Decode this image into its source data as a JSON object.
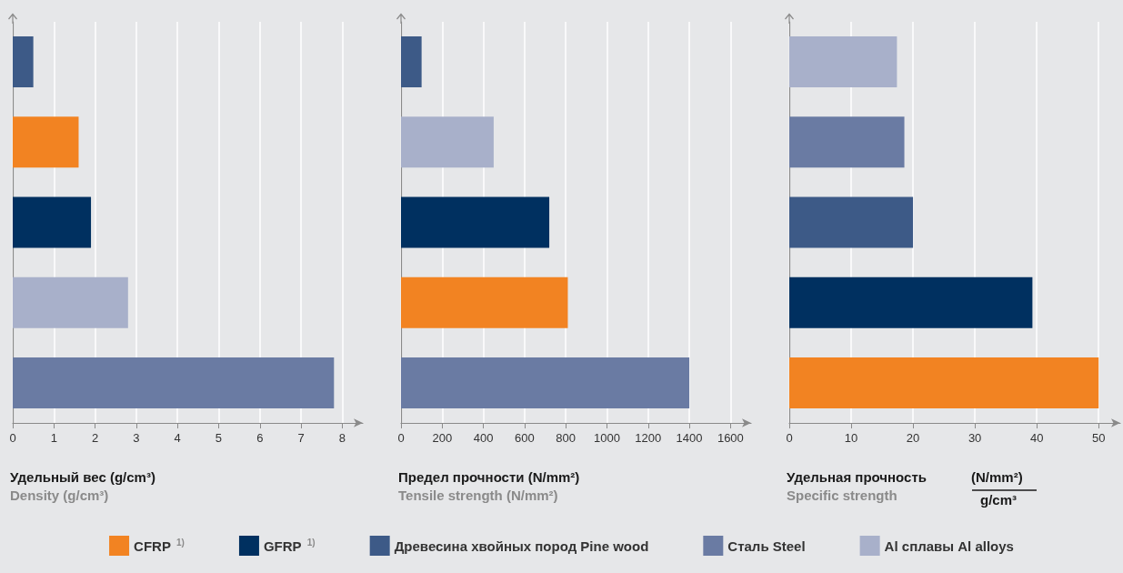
{
  "chart_data": [
    {
      "type": "bar",
      "orientation": "horizontal",
      "stacked": true,
      "xlabel": "Удельный вес (g/cm³)",
      "annotations": [
        "Density (g/cm³)"
      ],
      "categories": [
        null,
        null,
        null,
        null,
        null
      ],
      "xlim": [
        0,
        8.5
      ],
      "xticks": [
        0,
        1,
        2,
        3,
        4,
        5,
        6,
        7,
        8
      ],
      "grid": "x",
      "legend": "bottom",
      "series": [
        {
          "name": "CFRP $^{1)}$",
          "color": "#f28322",
          "values": [
            null,
            1.6,
            null,
            null,
            null
          ]
        },
        {
          "name": "GFRP $^{1)}$",
          "color": "#003060",
          "values": [
            null,
            null,
            1.9,
            null,
            null
          ]
        },
        {
          "name": "Древесина хвойных пород Pine wood",
          "color": "#3d5a87",
          "values": [
            0.5,
            null,
            null,
            null,
            null
          ]
        },
        {
          "name": "Сталь Steel",
          "color": "#6a7ba3",
          "values": [
            null,
            null,
            null,
            null,
            7.8
          ]
        },
        {
          "name": "Al сплавы Al alloys",
          "color": "#a8b0ca",
          "values": [
            null,
            null,
            null,
            2.8,
            null
          ]
        }
      ]
    },
    {
      "type": "bar",
      "orientation": "horizontal",
      "stacked": true,
      "xlabel": "Предел прочности (N/mm²)",
      "annotations": [
        "Tensile strength (N/mm²)"
      ],
      "categories": [
        null,
        null,
        null,
        null,
        null
      ],
      "xlim": [
        0,
        1700
      ],
      "xticks": [
        0,
        200,
        400,
        600,
        800,
        1000,
        1200,
        1400,
        1600
      ],
      "grid": "x",
      "legend": "bottom",
      "series": [
        {
          "name": "CFRP $^{1)}$",
          "color": "#f28322",
          "values": [
            null,
            null,
            null,
            810,
            null
          ]
        },
        {
          "name": "GFRP $^{1)}$",
          "color": "#003060",
          "values": [
            null,
            null,
            720,
            null,
            null
          ]
        },
        {
          "name": "Древесина хвойных пород Pine wood",
          "color": "#3d5a87",
          "values": [
            100,
            null,
            null,
            null,
            null
          ]
        },
        {
          "name": "Сталь Steel",
          "color": "#6a7ba3",
          "values": [
            null,
            null,
            null,
            null,
            1400
          ]
        },
        {
          "name": "Al сплавы Al alloys",
          "color": "#a8b0ca",
          "values": [
            null,
            450,
            null,
            null,
            null
          ]
        }
      ]
    },
    {
      "type": "bar",
      "orientation": "horizontal",
      "stacked": true,
      "xlabel": "Удельная прочность",
      "annotations": [
        "Specific strength",
        "(N/mm²)",
        "g/cm³"
      ],
      "categories": [
        null,
        null,
        null,
        null,
        null
      ],
      "xlim": [
        0,
        53.5
      ],
      "xticks": [
        0,
        10,
        20,
        30,
        40,
        50
      ],
      "grid": "x",
      "legend": "bottom",
      "series": [
        {
          "name": "CFRP $^{1)}$",
          "color": "#f28322",
          "values": [
            null,
            null,
            null,
            null,
            50
          ]
        },
        {
          "name": "GFRP $^{1)}$",
          "color": "#003060",
          "values": [
            null,
            null,
            null,
            39.3,
            null
          ]
        },
        {
          "name": "Древесина хвойных пород Pine wood",
          "color": "#3d5a87",
          "values": [
            null,
            null,
            20,
            null,
            null
          ]
        },
        {
          "name": "Сталь Steel",
          "color": "#6a7ba3",
          "values": [
            null,
            18.6,
            null,
            null,
            null
          ]
        },
        {
          "name": "Al сплавы Al alloys",
          "color": "#a8b0ca",
          "values": [
            17.4,
            null,
            null,
            null,
            null
          ]
        }
      ]
    }
  ]
}
